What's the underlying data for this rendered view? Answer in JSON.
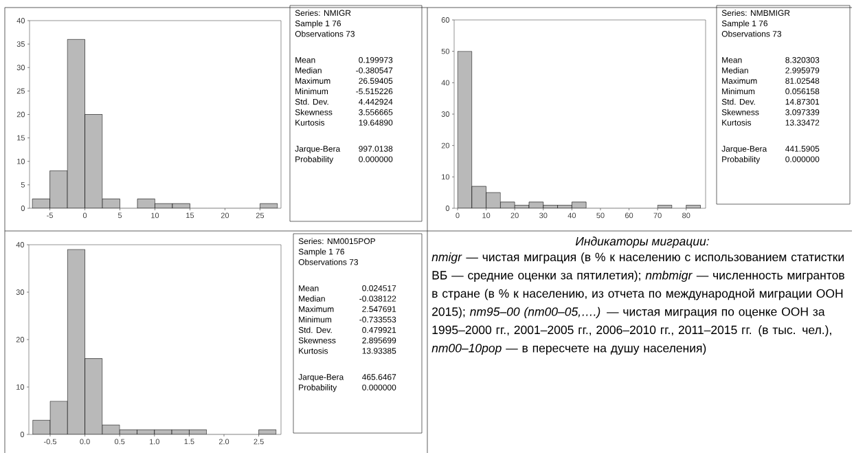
{
  "chart_data": [
    {
      "type": "histogram",
      "bins": [
        -7.5,
        -5,
        -2.5,
        0,
        2.5,
        5,
        7.5,
        10,
        12.5,
        15,
        17.5,
        20,
        22.5,
        25,
        27.5
      ],
      "values": [
        2,
        8,
        36,
        20,
        2,
        0,
        2,
        1,
        1,
        0,
        0,
        0,
        0,
        1
      ],
      "color": "#b9b9b9",
      "xlim": [
        -7.9,
        28
      ],
      "ylim": [
        0,
        40
      ],
      "xticks": [
        -5,
        0,
        5,
        10,
        15,
        20,
        25
      ],
      "yticks": [
        0,
        5,
        10,
        15,
        20,
        25,
        30,
        35,
        40
      ],
      "annotations": [
        "Series: NMIGR",
        "Sample 1 76",
        "Observations 73",
        "Mean",
        "0.199973",
        "Median",
        "-0.380547",
        "Maximum",
        "26.59405",
        "Minimum",
        "-5.515226",
        "Std. Dev.",
        "4.442924",
        "Skewness",
        "3.556665",
        "Kurtosis",
        "19.64890",
        "Jarque-Bera",
        "997.0138",
        "Probability",
        "0.000000"
      ]
    },
    {
      "type": "histogram",
      "bins": [
        0,
        5,
        10,
        15,
        20,
        25,
        30,
        35,
        40,
        45,
        50,
        55,
        60,
        65,
        70,
        75,
        80,
        85
      ],
      "values": [
        50,
        7,
        5,
        2,
        1,
        2,
        1,
        1,
        2,
        0,
        0,
        0,
        0,
        0,
        1,
        0,
        1
      ],
      "color": "#b9b9b9",
      "xlim": [
        -1.2,
        86.8
      ],
      "ylim": [
        0,
        60
      ],
      "xticks": [
        0,
        10,
        20,
        30,
        40,
        50,
        60,
        70,
        80
      ],
      "yticks": [
        0,
        10,
        20,
        30,
        40,
        50,
        60
      ],
      "annotations": [
        "Series: NMBMIGR",
        "Sample 1 76",
        "Observations 73",
        "Mean",
        "8.320303",
        "Median",
        "2.995979",
        "Maximum",
        "81.02548",
        "Minimum",
        "0.056158",
        "Std. Dev.",
        "14.87301",
        "Skewness",
        "3.097339",
        "Kurtosis",
        "13.33472",
        "Jarque-Bera",
        "441.5905",
        "Probability",
        "0.000000"
      ]
    },
    {
      "type": "histogram",
      "bins": [
        -0.75,
        -0.5,
        -0.25,
        0,
        0.25,
        0.5,
        0.75,
        1,
        1.25,
        1.5,
        1.75,
        2,
        2.25,
        2.5,
        2.75
      ],
      "values": [
        3,
        7,
        39,
        16,
        2,
        1,
        1,
        1,
        1,
        1,
        0,
        0,
        0,
        1
      ],
      "color": "#b9b9b9",
      "xlim": [
        -0.806,
        2.82
      ],
      "ylim": [
        0,
        40
      ],
      "xticks": [
        -0.5,
        {
          "value": 0,
          "label": "0.0"
        },
        0.5,
        {
          "value": 1,
          "label": "1.0"
        },
        1.5,
        {
          "value": 2,
          "label": "2.0"
        },
        2.5
      ],
      "yticks": [
        0,
        10,
        20,
        30,
        40
      ],
      "annotations": [
        "Series: NM0015POP",
        "Sample 1 76",
        "Observations 73",
        "Mean",
        "0.024517",
        "Median",
        "-0.038122",
        "Maximum",
        "2.547691",
        "Minimum",
        "-0.733553",
        "Std. Dev.",
        "0.479921",
        "Skewness",
        "2.895699",
        "Kurtosis",
        "13.93385",
        "Jarque-Bera",
        "465.6467",
        "Probability",
        "0.000000"
      ]
    },
    {
      "type": "other",
      "title": "Индикаторы миграции:",
      "annotations": [
        "*nmigr* — чистая миграция (в % к населению с использованием статистки ВБ — средние оценки за пятилетия); *nmbmigr* — численность мигрантов в стране (в % к населению, из отчета по международной миграции ООН 2015); *nm95–00 (nm00–05,….)* — чистая миграция по оценке ООН за 1995–2000 гг., 2001–2005 гг., 2006–2010 гг., 2011–2015 гг. (в тыс. чел.), *nm00–10pop* — в пересчете на душу населения)"
      ]
    }
  ]
}
